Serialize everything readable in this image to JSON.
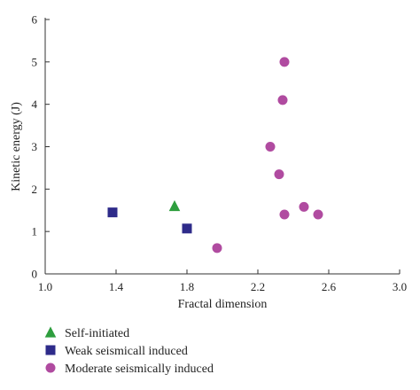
{
  "chart_data": {
    "type": "scatter",
    "title": "",
    "xlabel": "Fractal dimension",
    "ylabel": "Kinetic energy (J)",
    "xlim": [
      1.0,
      3.0
    ],
    "ylim": [
      0,
      6
    ],
    "xticks": [
      1.0,
      1.4,
      1.8,
      2.2,
      2.6,
      3.0
    ],
    "xtick_labels": [
      "1.0",
      "1.4",
      "1.8",
      "2.2",
      "2.6",
      "3.0"
    ],
    "yticks": [
      0,
      1,
      2,
      3,
      4,
      5,
      6
    ],
    "ytick_labels": [
      "0",
      "1",
      "2",
      "3",
      "4",
      "5",
      "6"
    ],
    "grid": false,
    "legend_position": "bottom-left, below plot",
    "series": [
      {
        "name": "Self-initiated",
        "marker": "triangle",
        "color": "#2e9e3e",
        "points": [
          {
            "x": 1.73,
            "y": 1.6
          }
        ]
      },
      {
        "name": "Weak seismicall induced",
        "marker": "square",
        "color": "#2e2b8a",
        "points": [
          {
            "x": 1.38,
            "y": 1.45
          },
          {
            "x": 1.8,
            "y": 1.07
          }
        ]
      },
      {
        "name": "Moderate seismically induced",
        "marker": "circle",
        "color": "#b04ba0",
        "points": [
          {
            "x": 1.97,
            "y": 0.61
          },
          {
            "x": 2.27,
            "y": 3.0
          },
          {
            "x": 2.32,
            "y": 2.35
          },
          {
            "x": 2.34,
            "y": 4.1
          },
          {
            "x": 2.35,
            "y": 5.0
          },
          {
            "x": 2.35,
            "y": 1.4
          },
          {
            "x": 2.46,
            "y": 1.58
          },
          {
            "x": 2.54,
            "y": 1.4
          }
        ]
      }
    ]
  }
}
